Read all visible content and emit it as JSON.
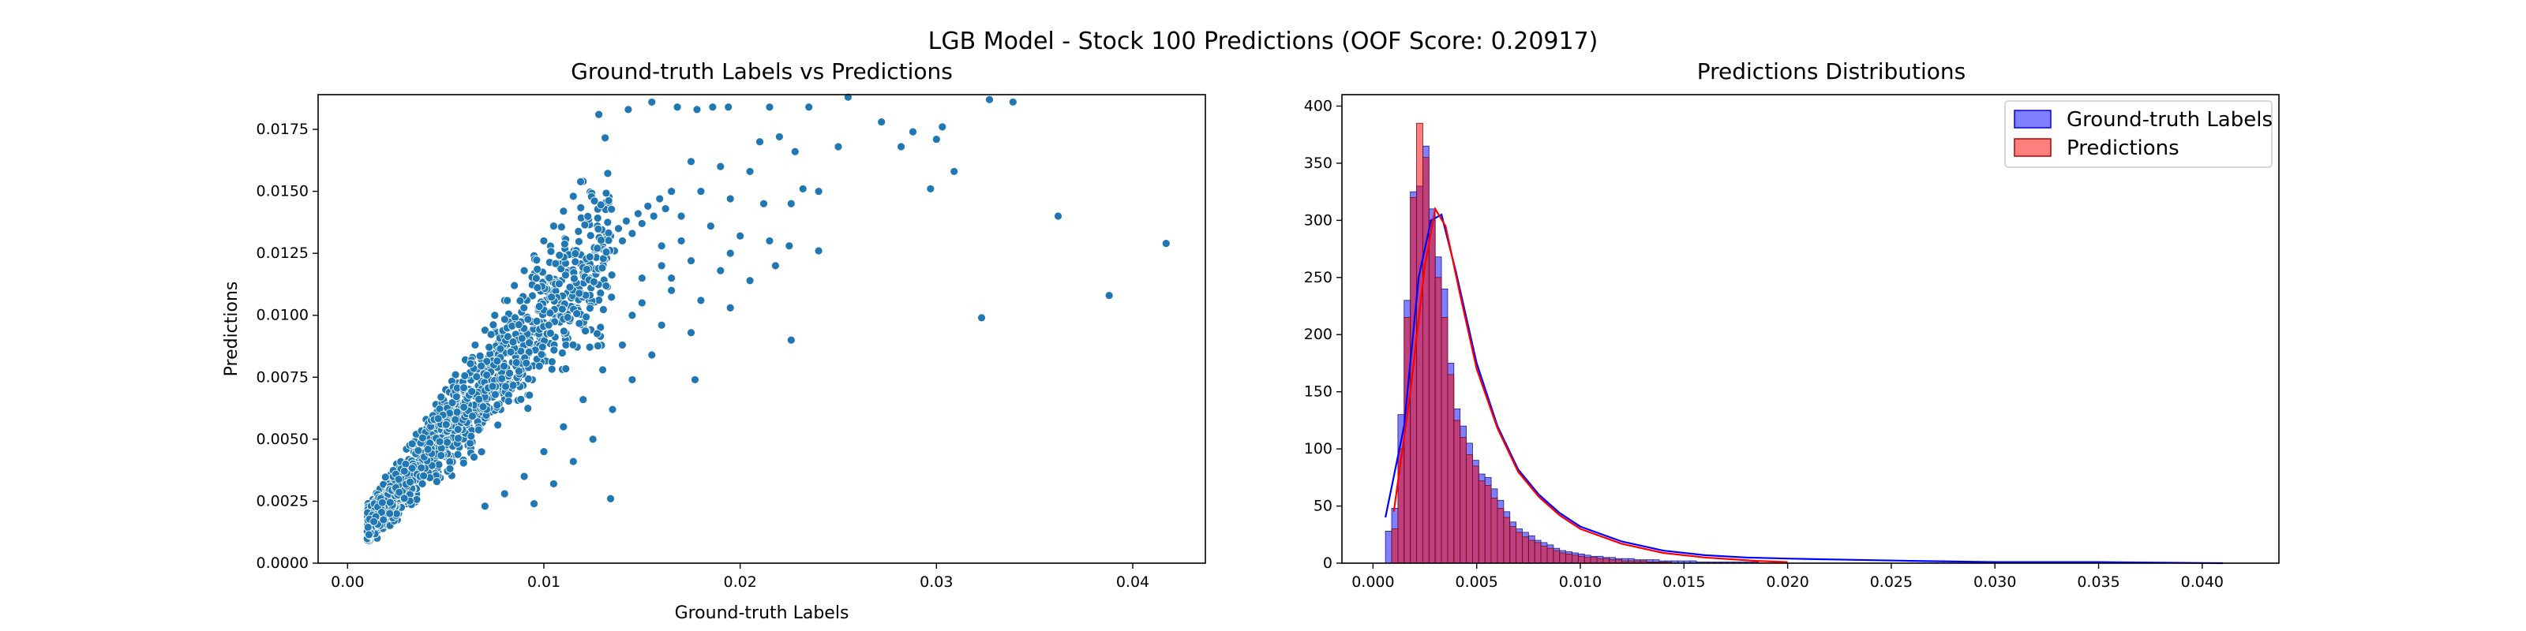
{
  "figure": {
    "suptitle": "LGB Model - Stock 100 Predictions (OOF Score: 0.20917)"
  },
  "chart_data": [
    {
      "type": "scatter",
      "title": "Ground-truth Labels vs Predictions",
      "xlabel": "Ground-truth Labels",
      "ylabel": "Predictions",
      "xlim": [
        -0.0015,
        0.0437
      ],
      "ylim": [
        0.0,
        0.0189
      ],
      "xticks": [
        "0.00",
        "0.01",
        "0.02",
        "0.03",
        "0.04"
      ],
      "yticks": [
        "0.0000",
        "0.0025",
        "0.0050",
        "0.0075",
        "0.0100",
        "0.0125",
        "0.0150",
        "0.0175"
      ],
      "grid": false,
      "marker_color": "#1f77b4",
      "points": [
        [
          0.001,
          0.001
        ],
        [
          0.0012,
          0.0011
        ],
        [
          0.0015,
          0.0013
        ],
        [
          0.0013,
          0.0016
        ],
        [
          0.0018,
          0.0014
        ],
        [
          0.002,
          0.0018
        ],
        [
          0.0017,
          0.0021
        ],
        [
          0.0022,
          0.0016
        ],
        [
          0.0024,
          0.0022
        ],
        [
          0.0021,
          0.0026
        ],
        [
          0.0026,
          0.002
        ],
        [
          0.0028,
          0.0027
        ],
        [
          0.0025,
          0.0031
        ],
        [
          0.003,
          0.0024
        ],
        [
          0.0032,
          0.003
        ],
        [
          0.0029,
          0.0035
        ],
        [
          0.0034,
          0.0028
        ],
        [
          0.0036,
          0.0034
        ],
        [
          0.0033,
          0.0039
        ],
        [
          0.0038,
          0.0032
        ],
        [
          0.004,
          0.0037
        ],
        [
          0.0037,
          0.0043
        ],
        [
          0.0042,
          0.0035
        ],
        [
          0.0044,
          0.0041
        ],
        [
          0.0041,
          0.0046
        ],
        [
          0.0046,
          0.0039
        ],
        [
          0.0048,
          0.0045
        ],
        [
          0.0045,
          0.005
        ],
        [
          0.005,
          0.0043
        ],
        [
          0.0052,
          0.0049
        ],
        [
          0.0049,
          0.0054
        ],
        [
          0.0054,
          0.0047
        ],
        [
          0.0056,
          0.0053
        ],
        [
          0.0053,
          0.0058
        ],
        [
          0.0058,
          0.0051
        ],
        [
          0.006,
          0.0057
        ],
        [
          0.0057,
          0.0062
        ],
        [
          0.0062,
          0.0055
        ],
        [
          0.0064,
          0.0061
        ],
        [
          0.0061,
          0.0066
        ],
        [
          0.0066,
          0.0059
        ],
        [
          0.0068,
          0.0065
        ],
        [
          0.0065,
          0.007
        ],
        [
          0.007,
          0.0063
        ],
        [
          0.0072,
          0.0069
        ],
        [
          0.0069,
          0.0074
        ],
        [
          0.0074,
          0.0067
        ],
        [
          0.0076,
          0.0073
        ],
        [
          0.0073,
          0.0078
        ],
        [
          0.0078,
          0.0071
        ],
        [
          0.008,
          0.0077
        ],
        [
          0.0077,
          0.0082
        ],
        [
          0.0082,
          0.0075
        ],
        [
          0.0084,
          0.0081
        ],
        [
          0.0081,
          0.0086
        ],
        [
          0.0086,
          0.0079
        ],
        [
          0.0088,
          0.0085
        ],
        [
          0.0085,
          0.009
        ],
        [
          0.009,
          0.0083
        ],
        [
          0.0092,
          0.0089
        ],
        [
          0.0089,
          0.0094
        ],
        [
          0.0094,
          0.0087
        ],
        [
          0.0096,
          0.0093
        ],
        [
          0.0093,
          0.0098
        ],
        [
          0.0098,
          0.0091
        ],
        [
          0.01,
          0.0097
        ],
        [
          0.0097,
          0.0102
        ],
        [
          0.0102,
          0.0095
        ],
        [
          0.0104,
          0.0101
        ],
        [
          0.0101,
          0.0106
        ],
        [
          0.0106,
          0.0099
        ],
        [
          0.0108,
          0.0105
        ],
        [
          0.0105,
          0.011
        ],
        [
          0.011,
          0.0103
        ],
        [
          0.0112,
          0.0109
        ],
        [
          0.0109,
          0.0114
        ],
        [
          0.0114,
          0.0107
        ],
        [
          0.0116,
          0.0113
        ],
        [
          0.0113,
          0.0118
        ],
        [
          0.0118,
          0.0111
        ],
        [
          0.012,
          0.0117
        ],
        [
          0.0122,
          0.0121
        ],
        [
          0.0124,
          0.0115
        ],
        [
          0.0126,
          0.0125
        ],
        [
          0.0128,
          0.0119
        ],
        [
          0.013,
          0.0128
        ],
        [
          0.0132,
          0.0123
        ],
        [
          0.0134,
          0.0132
        ],
        [
          0.0136,
          0.0126
        ],
        [
          0.0138,
          0.0135
        ],
        [
          0.014,
          0.013
        ],
        [
          0.0142,
          0.0138
        ],
        [
          0.0145,
          0.0133
        ],
        [
          0.0148,
          0.0141
        ],
        [
          0.015,
          0.0137
        ],
        [
          0.0153,
          0.0144
        ],
        [
          0.0156,
          0.014
        ],
        [
          0.0159,
          0.0147
        ],
        [
          0.0162,
          0.0143
        ],
        [
          0.0165,
          0.015
        ],
        [
          0.001,
          0.002
        ],
        [
          0.0015,
          0.0025
        ],
        [
          0.002,
          0.0033
        ],
        [
          0.0025,
          0.004
        ],
        [
          0.003,
          0.0046
        ],
        [
          0.0035,
          0.0052
        ],
        [
          0.004,
          0.0058
        ],
        [
          0.0045,
          0.0064
        ],
        [
          0.005,
          0.007
        ],
        [
          0.0055,
          0.0076
        ],
        [
          0.006,
          0.0082
        ],
        [
          0.0065,
          0.0088
        ],
        [
          0.007,
          0.0094
        ],
        [
          0.0075,
          0.01
        ],
        [
          0.008,
          0.0106
        ],
        [
          0.0085,
          0.0112
        ],
        [
          0.009,
          0.0118
        ],
        [
          0.0095,
          0.0124
        ],
        [
          0.01,
          0.013
        ],
        [
          0.0105,
          0.0136
        ],
        [
          0.011,
          0.0142
        ],
        [
          0.0115,
          0.0148
        ],
        [
          0.012,
          0.0154
        ],
        [
          0.0128,
          0.0181
        ],
        [
          0.0143,
          0.0183
        ],
        [
          0.0155,
          0.0186
        ],
        [
          0.0168,
          0.0184
        ],
        [
          0.0178,
          0.0183
        ],
        [
          0.0186,
          0.0184
        ],
        [
          0.0194,
          0.0184
        ],
        [
          0.0215,
          0.0184
        ],
        [
          0.0235,
          0.0184
        ],
        [
          0.0255,
          0.0188
        ],
        [
          0.0272,
          0.0178
        ],
        [
          0.0288,
          0.0174
        ],
        [
          0.03,
          0.0171
        ],
        [
          0.0303,
          0.0176
        ],
        [
          0.0327,
          0.0187
        ],
        [
          0.0339,
          0.0186
        ],
        [
          0.021,
          0.017
        ],
        [
          0.022,
          0.0172
        ],
        [
          0.0228,
          0.0166
        ],
        [
          0.025,
          0.0168
        ],
        [
          0.0282,
          0.0168
        ],
        [
          0.0297,
          0.0151
        ],
        [
          0.0309,
          0.0158
        ],
        [
          0.0232,
          0.0151
        ],
        [
          0.0205,
          0.0158
        ],
        [
          0.019,
          0.016
        ],
        [
          0.0175,
          0.0162
        ],
        [
          0.018,
          0.015
        ],
        [
          0.0195,
          0.0147
        ],
        [
          0.0212,
          0.0145
        ],
        [
          0.0226,
          0.0145
        ],
        [
          0.024,
          0.015
        ],
        [
          0.017,
          0.014
        ],
        [
          0.0185,
          0.0136
        ],
        [
          0.02,
          0.0132
        ],
        [
          0.0215,
          0.013
        ],
        [
          0.0225,
          0.0128
        ],
        [
          0.024,
          0.0126
        ],
        [
          0.016,
          0.0128
        ],
        [
          0.0175,
          0.0122
        ],
        [
          0.019,
          0.0118
        ],
        [
          0.0205,
          0.0114
        ],
        [
          0.015,
          0.0115
        ],
        [
          0.0165,
          0.011
        ],
        [
          0.018,
          0.0106
        ],
        [
          0.0195,
          0.0103
        ],
        [
          0.0145,
          0.01
        ],
        [
          0.016,
          0.0096
        ],
        [
          0.0175,
          0.0093
        ],
        [
          0.014,
          0.0088
        ],
        [
          0.0155,
          0.0084
        ],
        [
          0.013,
          0.0078
        ],
        [
          0.0145,
          0.0074
        ],
        [
          0.012,
          0.0066
        ],
        [
          0.0135,
          0.0062
        ],
        [
          0.011,
          0.0055
        ],
        [
          0.0125,
          0.005
        ],
        [
          0.01,
          0.0045
        ],
        [
          0.0115,
          0.0041
        ],
        [
          0.009,
          0.0035
        ],
        [
          0.0105,
          0.0032
        ],
        [
          0.008,
          0.0028
        ],
        [
          0.0095,
          0.0024
        ],
        [
          0.007,
          0.0023
        ],
        [
          0.0134,
          0.0026
        ],
        [
          0.0226,
          0.009
        ],
        [
          0.0177,
          0.0074
        ],
        [
          0.0323,
          0.0099
        ],
        [
          0.0362,
          0.014
        ],
        [
          0.0388,
          0.0108
        ],
        [
          0.0417,
          0.0129
        ],
        [
          0.0218,
          0.012
        ],
        [
          0.0195,
          0.0125
        ],
        [
          0.017,
          0.013
        ],
        [
          0.016,
          0.012
        ],
        [
          0.015,
          0.0105
        ],
        [
          0.0165,
          0.0115
        ]
      ]
    },
    {
      "type": "histogram",
      "title": "Predictions Distributions",
      "xlabel": "",
      "ylabel": "",
      "xlim": [
        -0.0015,
        0.0437
      ],
      "ylim": [
        0,
        410
      ],
      "xticks": [
        "0.000",
        "0.005",
        "0.010",
        "0.015",
        "0.020",
        "0.025",
        "0.030",
        "0.035",
        "0.040"
      ],
      "yticks": [
        "0",
        "50",
        "100",
        "150",
        "200",
        "250",
        "300",
        "350",
        "400"
      ],
      "bin_width": 0.0003,
      "legend": {
        "position": "top-right"
      },
      "series": [
        {
          "name": "Ground-truth Labels",
          "color": "#0000ff",
          "bins_start": 0.0006,
          "counts": [
            28,
            48,
            130,
            230,
            325,
            330,
            365,
            310,
            268,
            240,
            175,
            135,
            120,
            105,
            90,
            78,
            75,
            65,
            55,
            45,
            36,
            30,
            27,
            24,
            20,
            18,
            16,
            13,
            11,
            10,
            9,
            8,
            7,
            6,
            6,
            5,
            5,
            4,
            4,
            4,
            3,
            3,
            3,
            3,
            2,
            2,
            2,
            2,
            2,
            2,
            1,
            1,
            1,
            1,
            1,
            1,
            1,
            1,
            1,
            1
          ],
          "kde": [
            [
              0.0006,
              40
            ],
            [
              0.0015,
              120
            ],
            [
              0.0022,
              250
            ],
            [
              0.0028,
              300
            ],
            [
              0.0033,
              305
            ],
            [
              0.004,
              255
            ],
            [
              0.005,
              175
            ],
            [
              0.006,
              120
            ],
            [
              0.007,
              82
            ],
            [
              0.008,
              60
            ],
            [
              0.009,
              44
            ],
            [
              0.01,
              32
            ],
            [
              0.012,
              19
            ],
            [
              0.014,
              11
            ],
            [
              0.016,
              7
            ],
            [
              0.018,
              5
            ],
            [
              0.02,
              4
            ],
            [
              0.023,
              3
            ],
            [
              0.026,
              2
            ],
            [
              0.03,
              1
            ],
            [
              0.035,
              1
            ],
            [
              0.041,
              0
            ]
          ]
        },
        {
          "name": "Predictions",
          "color": "#ff0000",
          "bins_start": 0.0006,
          "counts": [
            0,
            30,
            100,
            215,
            320,
            385,
            355,
            300,
            250,
            215,
            165,
            125,
            110,
            95,
            85,
            72,
            68,
            57,
            48,
            40,
            32,
            27,
            23,
            20,
            18,
            15,
            13,
            11,
            9,
            8,
            7,
            6,
            5,
            5,
            4,
            4,
            3,
            3,
            2,
            2,
            2,
            2,
            1,
            1,
            1,
            1
          ],
          "kde": [
            [
              0.001,
              45
            ],
            [
              0.0018,
              150
            ],
            [
              0.0025,
              260
            ],
            [
              0.003,
              310
            ],
            [
              0.0035,
              295
            ],
            [
              0.0042,
              235
            ],
            [
              0.005,
              170
            ],
            [
              0.006,
              118
            ],
            [
              0.007,
              80
            ],
            [
              0.008,
              58
            ],
            [
              0.009,
              42
            ],
            [
              0.01,
              30
            ],
            [
              0.012,
              17
            ],
            [
              0.014,
              9
            ],
            [
              0.016,
              5
            ],
            [
              0.0185,
              2
            ],
            [
              0.02,
              1
            ]
          ]
        }
      ]
    }
  ]
}
